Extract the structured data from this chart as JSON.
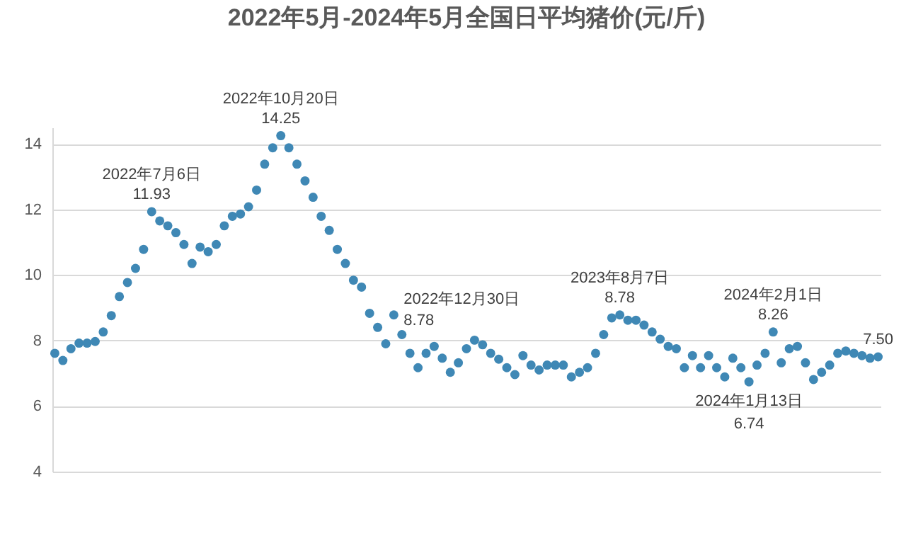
{
  "chart_data": {
    "type": "scatter",
    "title": "2022年5月-2024年5月全国日平均猪价(元/斤)",
    "categories": [
      null,
      null,
      null,
      null,
      null,
      null,
      null,
      null,
      null,
      null,
      null,
      null,
      null,
      null,
      null,
      null,
      null,
      null,
      null,
      null,
      null,
      null,
      null,
      null,
      null,
      null,
      null,
      null,
      null,
      null,
      null,
      null,
      null,
      null,
      null,
      null,
      null,
      null,
      null,
      null,
      null,
      null,
      null,
      null,
      null,
      null,
      null,
      null,
      null,
      null,
      null,
      null,
      null,
      null,
      null,
      null,
      null,
      null,
      null,
      null,
      null,
      null,
      null,
      null,
      null,
      null,
      null,
      null,
      null,
      null,
      null,
      null,
      null,
      null,
      null,
      null,
      null,
      null,
      null,
      null,
      null,
      null,
      null,
      null,
      null,
      null,
      null,
      null,
      null,
      null,
      null,
      null,
      null,
      null,
      null,
      null,
      null,
      null,
      null,
      null,
      null,
      null,
      null
    ],
    "series": [
      {
        "color": "#3f88b5",
        "values": [
          7.61,
          7.39,
          7.75,
          7.92,
          7.92,
          7.97,
          8.26,
          8.76,
          9.34,
          9.77,
          10.2,
          10.78,
          11.93,
          11.65,
          11.5,
          11.29,
          10.93,
          10.35,
          10.85,
          10.71,
          10.93,
          11.5,
          11.79,
          11.86,
          12.08,
          12.59,
          13.38,
          13.88,
          14.25,
          13.88,
          13.38,
          12.87,
          12.37,
          11.79,
          11.36,
          10.78,
          10.35,
          9.84,
          9.63,
          8.83,
          8.4,
          7.9,
          8.78,
          8.18,
          7.61,
          7.17,
          7.61,
          7.82,
          7.46,
          7.03,
          7.32,
          7.75,
          8.01,
          7.87,
          7.61,
          7.43,
          7.17,
          6.96,
          7.54,
          7.25,
          7.1,
          7.25,
          7.25,
          7.25,
          6.89,
          7.03,
          7.17,
          7.61,
          8.18,
          8.69,
          8.78,
          8.62,
          8.62,
          8.47,
          8.26,
          8.04,
          7.82,
          7.75,
          7.17,
          7.54,
          7.17,
          7.54,
          7.17,
          6.89,
          7.46,
          7.17,
          6.74,
          7.25,
          7.61,
          8.26,
          7.32,
          7.75,
          7.82,
          7.32,
          6.81,
          7.03,
          7.25,
          7.61,
          7.68,
          7.61,
          7.54,
          7.46,
          7.5
        ],
        "value_labels": [
          null,
          null,
          null,
          null,
          null,
          null,
          null,
          null,
          null,
          null,
          null,
          null,
          "11.93",
          null,
          null,
          null,
          null,
          null,
          null,
          null,
          null,
          null,
          null,
          null,
          null,
          null,
          null,
          null,
          "14.25",
          null,
          null,
          null,
          null,
          null,
          null,
          null,
          null,
          null,
          null,
          null,
          null,
          null,
          "8.78",
          null,
          null,
          null,
          null,
          null,
          null,
          null,
          null,
          null,
          null,
          null,
          null,
          null,
          null,
          null,
          null,
          null,
          null,
          null,
          null,
          null,
          null,
          null,
          null,
          null,
          null,
          null,
          "8.78",
          null,
          null,
          null,
          null,
          null,
          null,
          null,
          null,
          null,
          null,
          null,
          null,
          null,
          null,
          null,
          "6.74",
          null,
          null,
          "8.26",
          null,
          null,
          null,
          null,
          null,
          null,
          null,
          null,
          null,
          null,
          null,
          null,
          "7.50"
        ]
      }
    ],
    "annotations": [
      {
        "text": "2022年7月6日",
        "y": 11.93
      },
      {
        "text": "2022年10月20日",
        "y": 14.25
      },
      "2022年12月30日",
      {
        "text": "2023年8月7日",
        "y": 8.78
      },
      {
        "text": "2024年1月13日",
        "y": 6.74
      },
      {
        "text": "2024年2月1日",
        "y": 8.26
      }
    ],
    "ylim": [
      4,
      14.5
    ],
    "yticks": [
      4,
      6,
      8,
      10,
      12,
      14
    ],
    "grid": "y",
    "tick_labels": "y",
    "marker": "circle"
  }
}
